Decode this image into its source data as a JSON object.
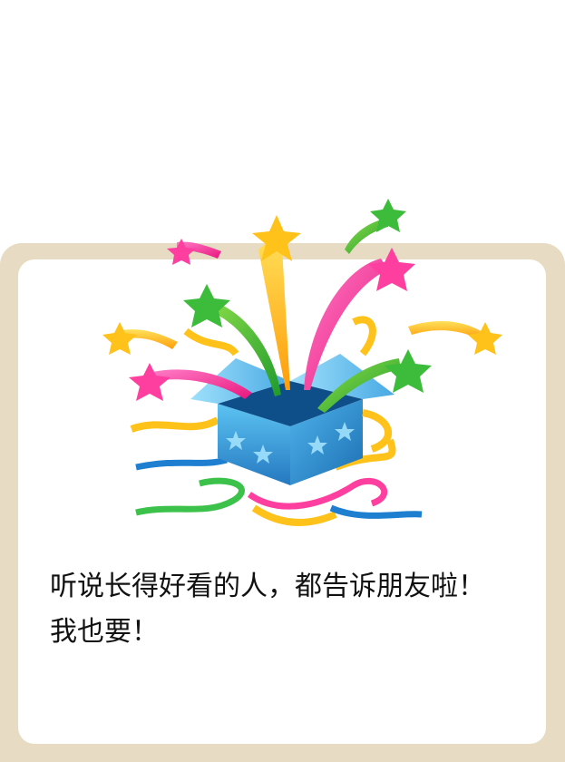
{
  "message": {
    "line1": "听说长得好看的人，都告诉朋友啦！",
    "line2": "我也要！"
  },
  "colors": {
    "frame": "#e7dbc3",
    "card": "#ffffff",
    "text": "#111111",
    "box_blue": "#2f8fd0",
    "star_yellow": "#ffc21a",
    "star_pink": "#ff3fa0",
    "star_green": "#3dbb3a"
  },
  "illustration": {
    "name": "gift-box-with-shooting-stars"
  }
}
